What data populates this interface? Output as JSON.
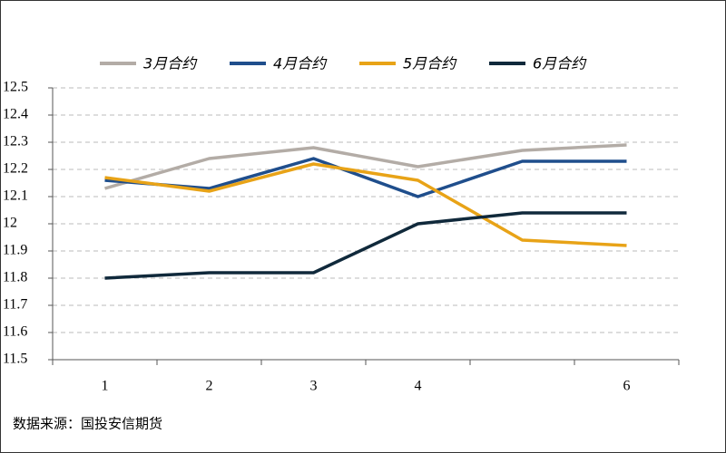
{
  "chart_data": {
    "type": "line",
    "categories": [
      "1",
      "2",
      "3",
      "4",
      null,
      "6"
    ],
    "series": [
      {
        "name": "3月合约",
        "color": "#b3aca6",
        "values": [
          12.13,
          12.24,
          12.28,
          12.21,
          12.27,
          12.29
        ]
      },
      {
        "name": "4月合约",
        "color": "#1f4e8c",
        "values": [
          12.16,
          12.13,
          12.24,
          12.1,
          12.23,
          12.23
        ]
      },
      {
        "name": "5月合约",
        "color": "#e8a317",
        "values": [
          12.17,
          12.12,
          12.22,
          12.16,
          11.94,
          11.92
        ]
      },
      {
        "name": "6月合约",
        "color": "#10293b",
        "values": [
          11.8,
          11.82,
          11.82,
          12.0,
          12.04,
          12.04
        ]
      }
    ],
    "ylim": [
      11.5,
      12.5
    ],
    "yticks": [
      11.5,
      11.6,
      11.7,
      11.8,
      11.9,
      12,
      12.1,
      12.2,
      12.3,
      12.4,
      12.5
    ],
    "grid": true,
    "legend": "top",
    "source": "数据来源：国投安信期货"
  }
}
